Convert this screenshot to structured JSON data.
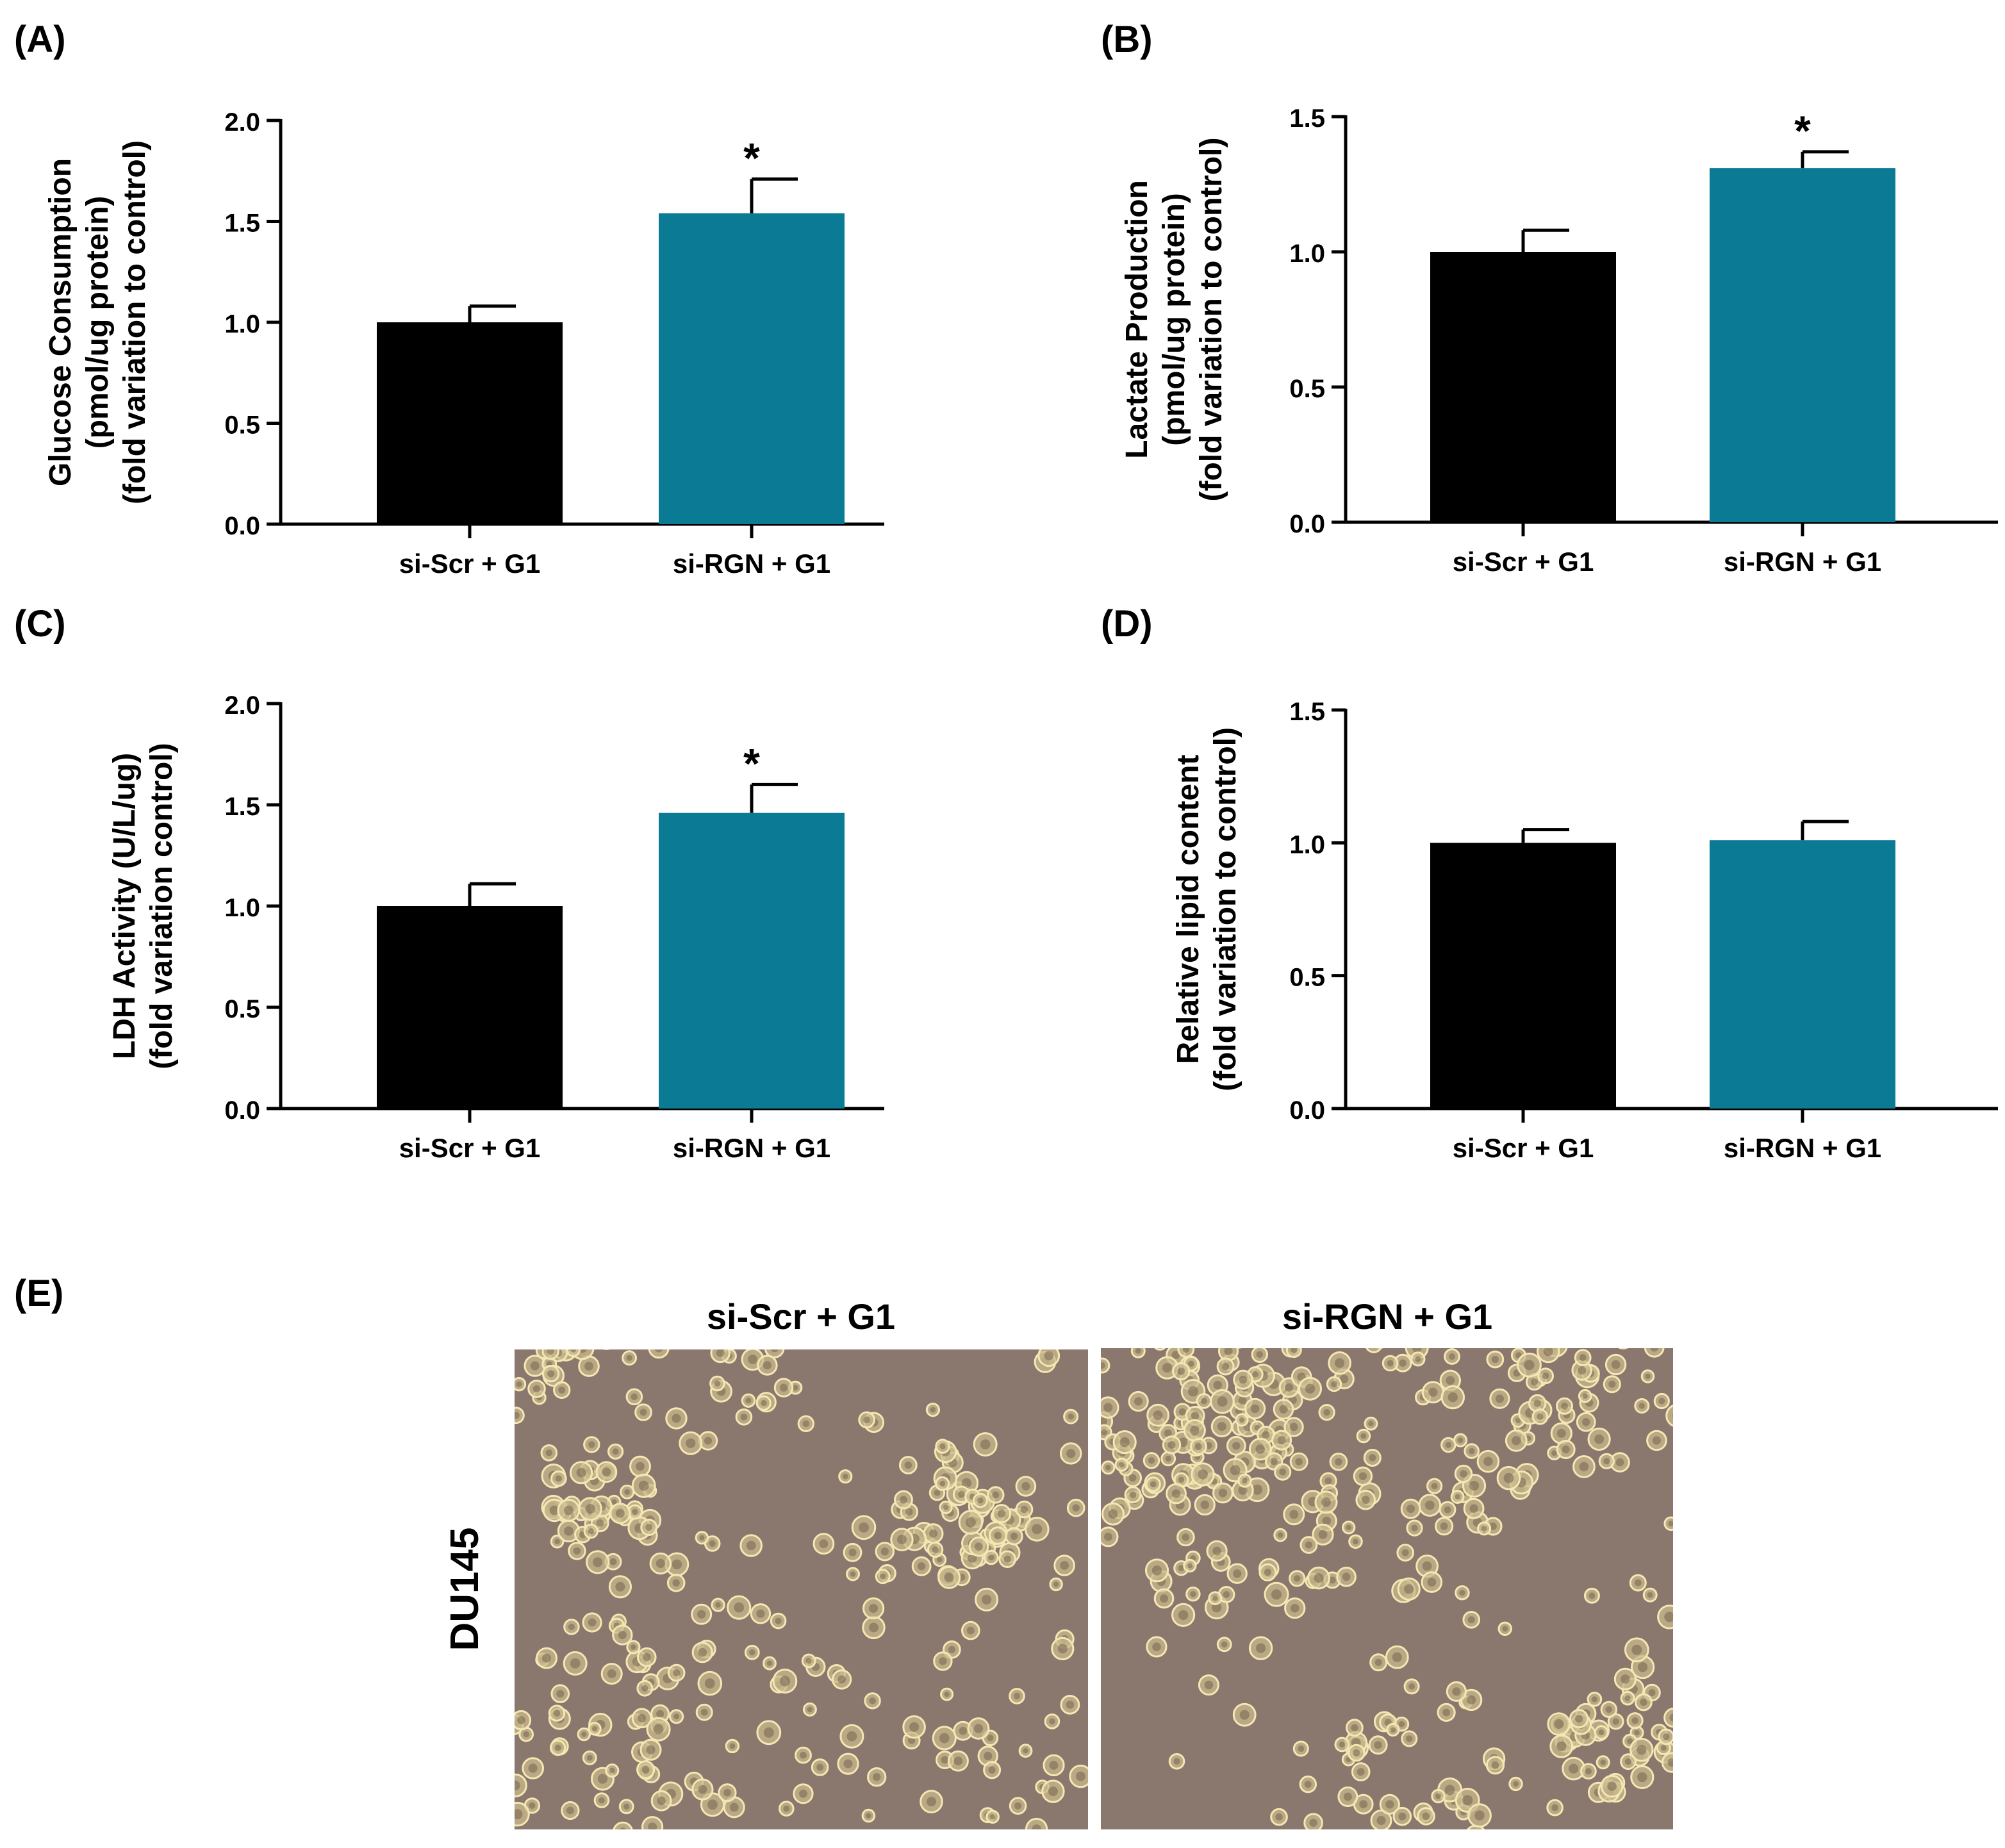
{
  "panels": {
    "A": "(A)",
    "B": "(B)",
    "C": "(C)",
    "D": "(D)",
    "E": "(E)"
  },
  "colors": {
    "control_bar": "#000000",
    "treated_bar": "#0b7a94",
    "micrograph_bg": "#8a776d",
    "cell_fill": "#c9b98c",
    "cell_rim": "#f4e7b4"
  },
  "chart_data": [
    {
      "panel": "A",
      "type": "bar",
      "categories": [
        "si-Scr + G1",
        "si-RGN + G1"
      ],
      "values": [
        1.0,
        1.54
      ],
      "errors": [
        0.08,
        0.17
      ],
      "significance": [
        "",
        "*"
      ],
      "ylabel": [
        "Glucose Consumption",
        "(pmol/ug protein)",
        "(fold variation to control)"
      ],
      "ylim": [
        0,
        2.0
      ],
      "yticks": [
        "0.0",
        "0.5",
        "1.0",
        "1.5",
        "2.0"
      ]
    },
    {
      "panel": "B",
      "type": "bar",
      "categories": [
        "si-Scr + G1",
        "si-RGN + G1"
      ],
      "values": [
        1.0,
        1.31
      ],
      "errors": [
        0.08,
        0.06
      ],
      "significance": [
        "",
        "*"
      ],
      "ylabel": [
        "Lactate Production",
        "(pmol/ug protein)",
        "(fold variation to control)"
      ],
      "ylim": [
        0,
        1.5
      ],
      "yticks": [
        "0.0",
        "0.5",
        "1.0",
        "1.5"
      ]
    },
    {
      "panel": "C",
      "type": "bar",
      "categories": [
        "si-Scr + G1",
        "si-RGN + G1"
      ],
      "values": [
        1.0,
        1.46
      ],
      "errors": [
        0.11,
        0.14
      ],
      "significance": [
        "",
        "*"
      ],
      "ylabel": [
        "LDH Activity (U/L/ug)",
        "(fold variation control)"
      ],
      "ylim": [
        0,
        2.0
      ],
      "yticks": [
        "0.0",
        "0.5",
        "1.0",
        "1.5",
        "2.0"
      ]
    },
    {
      "panel": "D",
      "type": "bar",
      "categories": [
        "si-Scr + G1",
        "si-RGN + G1"
      ],
      "values": [
        1.0,
        1.01
      ],
      "errors": [
        0.05,
        0.07
      ],
      "significance": [
        "",
        ""
      ],
      "ylabel": [
        "Relative lipid content",
        "(fold variation to control)"
      ],
      "ylim": [
        0,
        1.5
      ],
      "yticks": [
        "0.0",
        "0.5",
        "1.0",
        "1.5"
      ]
    }
  ],
  "micrographs": {
    "row_label": "DU145",
    "titles": [
      "si-Scr + G1",
      "si-RGN + G1"
    ]
  }
}
